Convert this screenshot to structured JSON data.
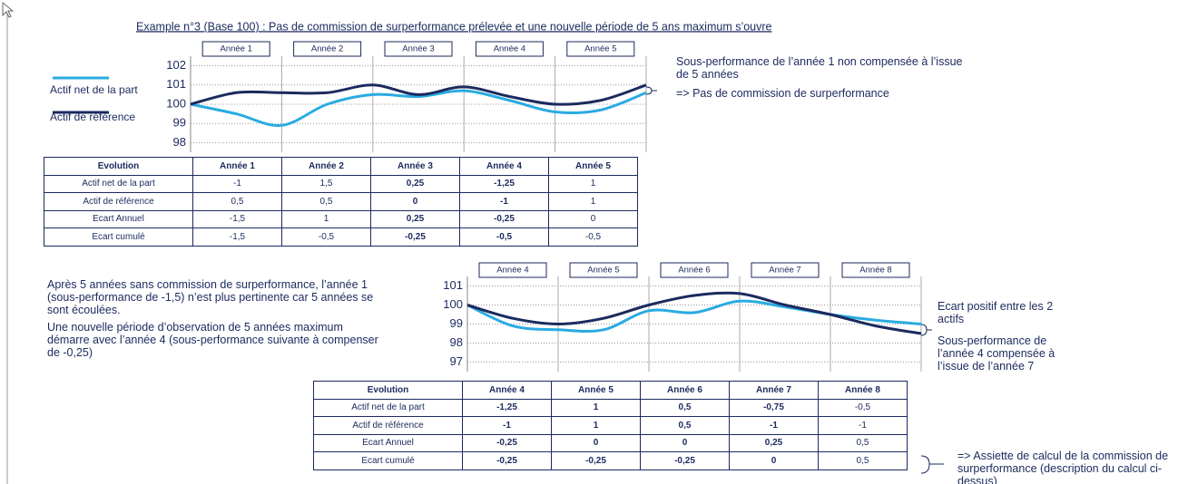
{
  "title": "Example n°3 (Base 100) : Pas de commission de surperformance prélevée et une nouvelle période de 5 ans maximum s’ouvre",
  "chart_data": [
    {
      "type": "line",
      "categories": [
        "Année 1",
        "Année 2",
        "Année 3",
        "Année 4",
        "Année 5"
      ],
      "x": [
        0,
        0.5,
        1,
        1.5,
        2,
        2.5,
        3,
        3.5,
        4,
        4.5,
        5
      ],
      "xlim": [
        0,
        5
      ],
      "ylim": [
        97.5,
        102.5
      ],
      "yticks": [
        98,
        99,
        100,
        101,
        102
      ],
      "grid": true,
      "series": [
        {
          "name": "Actif net de la part",
          "color": "#29abe2",
          "values": [
            100,
            99.5,
            98.9,
            100,
            100.5,
            100.4,
            100.7,
            100.2,
            99.6,
            99.7,
            100.6
          ]
        },
        {
          "name": "Actif de référence",
          "color": "#1b2a5e",
          "values": [
            100,
            100.6,
            100.6,
            100.6,
            101,
            100.5,
            100.9,
            100.4,
            100,
            100.2,
            101
          ]
        }
      ],
      "annotations": [
        "Sous-performance de l’année 1 non compensée à l’issue de 5 années",
        "=> Pas de commission de surperformance"
      ]
    },
    {
      "type": "line",
      "categories": [
        "Année 4",
        "Année 5",
        "Année 6",
        "Année 7",
        "Année 8"
      ],
      "x": [
        0,
        0.5,
        1,
        1.5,
        2,
        2.5,
        3,
        3.5,
        4,
        4.5,
        5
      ],
      "xlim": [
        0,
        5
      ],
      "ylim": [
        96.5,
        101.5
      ],
      "yticks": [
        97,
        98,
        99,
        100,
        101
      ],
      "grid": true,
      "series": [
        {
          "color": "#29abe2",
          "values": [
            100,
            98.9,
            98.7,
            98.7,
            99.7,
            99.6,
            100.2,
            99.9,
            99.5,
            99.2,
            99
          ]
        },
        {
          "color": "#1b2a5e",
          "values": [
            100,
            99.3,
            99,
            99.3,
            100,
            100.5,
            100.6,
            100,
            99.5,
            98.9,
            98.5
          ]
        }
      ],
      "annotations": [
        "Ecart positif entre les 2 actifs",
        "Sous-performance de l’année 4 compensée à l’issue de l’année 7"
      ]
    }
  ],
  "tables": [
    {
      "header": [
        "Evolution",
        "Année 1",
        "Année 2",
        "Année 3",
        "Année 4",
        "Année 5"
      ],
      "rows": [
        [
          "Actif net de la part",
          "-1",
          "1,5",
          "0,25",
          "-1,25",
          "1"
        ],
        [
          "Actif de référence",
          "0,5",
          "0,5",
          "0",
          "-1",
          "1"
        ],
        [
          "Ecart Annuel",
          "-1,5",
          "1",
          "0,25",
          "-0,25",
          "0"
        ],
        [
          "Ecart cumulé",
          "-1,5",
          "-0,5",
          "-0,25",
          "-0,5",
          "-0,5"
        ]
      ]
    },
    {
      "header": [
        "Evolution",
        "Année 4",
        "Année 5",
        "Année 6",
        "Année 7",
        "Année 8"
      ],
      "rows": [
        [
          "Actif net de la part",
          "-1,25",
          "1",
          "0,5",
          "-0,75",
          "-0,5"
        ],
        [
          "Actif de référence",
          "-1",
          "1",
          "0,5",
          "-1",
          "-1"
        ],
        [
          "Ecart Annuel",
          "-0,25",
          "0",
          "0",
          "0,25",
          "0,5"
        ],
        [
          "Ecart cumulé",
          "-0,25",
          "-0,25",
          "-0,25",
          "0",
          "0,5"
        ]
      ]
    }
  ],
  "paragraphs": [
    "Après 5 années sans commission de surperformance, l’année 1 (sous-performance de -1,5)  n’est plus pertinente car 5 années se sont écoulées.",
    "Une nouvelle période d’observation de 5 années maximum démarre avec l’année 4 (sous-performance suivante à compenser de -0,25)"
  ],
  "note": "=> Assiette de calcul de la commission de surperformance (description du calcul ci-dessus)"
}
